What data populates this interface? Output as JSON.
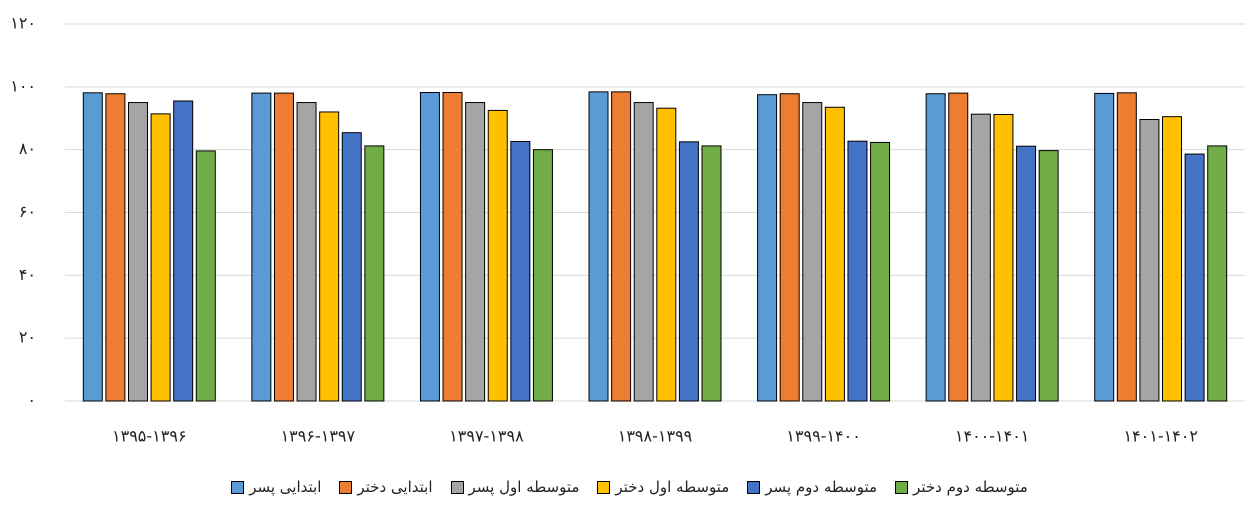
{
  "chart_data": {
    "type": "bar",
    "categories": [
      "۱۳۹۵-۱۳۹۶",
      "۱۳۹۶-۱۳۹۷",
      "۱۳۹۷-۱۳۹۸",
      "۱۳۹۸-۱۳۹۹",
      "۱۳۹۹-۱۴۰۰",
      "۱۴۰۰-۱۴۰۱",
      "۱۴۰۱-۱۴۰۲"
    ],
    "series": [
      {
        "name": "ابتدایی پسر",
        "color": "#5b9bd5",
        "values": [
          98.1,
          98,
          98.2,
          98.4,
          97.5,
          97.8,
          97.9
        ]
      },
      {
        "name": "ابتدایی دختر",
        "color": "#ed7d31",
        "values": [
          97.8,
          98,
          98.2,
          98.4,
          97.8,
          98,
          98.1
        ]
      },
      {
        "name": "متوسطه اول پسر",
        "color": "#a5a5a5",
        "values": [
          95,
          95,
          95,
          95,
          95,
          91.3,
          89.6
        ]
      },
      {
        "name": "متوسطه اول دختر",
        "color": "#ffc000",
        "values": [
          91.4,
          92,
          92.5,
          93.2,
          93.5,
          91.2,
          90.5
        ]
      },
      {
        "name": "متوسطه دوم پسر",
        "color": "#4472c4",
        "values": [
          95.5,
          85.4,
          82.6,
          82.5,
          82.7,
          81.1,
          78.6
        ]
      },
      {
        "name": "متوسطه دوم دختر",
        "color": "#70ad47",
        "values": [
          79.6,
          81.2,
          80,
          81.2,
          82.3,
          79.7,
          81.2
        ]
      }
    ],
    "ylim": [
      0,
      120
    ],
    "yticks": [
      {
        "value": 0,
        "label": "۰"
      },
      {
        "value": 20,
        "label": "۲۰"
      },
      {
        "value": 40,
        "label": "۴۰"
      },
      {
        "value": 60,
        "label": "۶۰"
      },
      {
        "value": 80,
        "label": "۸۰"
      },
      {
        "value": 100,
        "label": "۱۰۰"
      },
      {
        "value": 120,
        "label": "۱۲۰"
      }
    ],
    "grid": true
  }
}
